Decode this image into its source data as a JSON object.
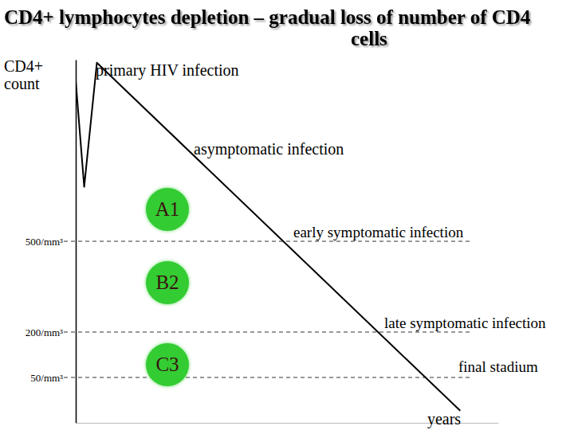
{
  "chart_data": {
    "type": "line",
    "title": "CD4+ lymphocytes depletion – gradual loss of number of CD4 cells",
    "y_label": "CD4+ count",
    "x_label": "years",
    "x": [
      0,
      0.2,
      0.5,
      9.1
    ],
    "values": [
      1030,
      680,
      1090,
      -60
    ],
    "color": "#000000",
    "xlim": [
      0,
      10
    ],
    "ylim": [
      -100,
      1100
    ],
    "xticks": [],
    "yticks": [
      {
        "value": 500,
        "label": "500/mm³"
      },
      {
        "value": 200,
        "label": "200/mm³"
      },
      {
        "value": 50,
        "label": "50/mm³"
      }
    ],
    "grid": true,
    "tick_labels": "y",
    "annotations": [
      "primary HIV infection",
      "asymptomatic infection",
      "early symptomatic infection",
      "late symptomatic infection",
      "final stadium"
    ],
    "stages": [
      "A1",
      "B2",
      "C3"
    ]
  }
}
